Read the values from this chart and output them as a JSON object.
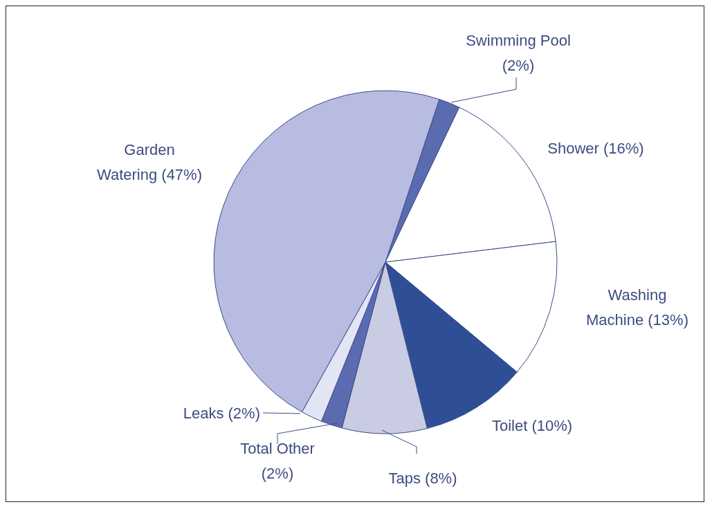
{
  "chart_data": {
    "type": "pie",
    "categories": [
      "Swimming Pool",
      "Shower",
      "Washing Machine",
      "Toilet",
      "Taps",
      "Total Other",
      "Leaks",
      "Garden Watering"
    ],
    "values": [
      2,
      16,
      13,
      10,
      8,
      2,
      2,
      47
    ],
    "value_labels": [
      "(2%)",
      "(16%)",
      "(13%)",
      "(10%)",
      "(8%)",
      "(2%)",
      "(2%)",
      "(47%)"
    ],
    "colors": [
      "#5b6bb0",
      "#ffffff",
      "#ffffff",
      "#2e4f96",
      "#c9cce2",
      "#5b6bb0",
      "#e2e5f3",
      "#b8bce0"
    ]
  }
}
